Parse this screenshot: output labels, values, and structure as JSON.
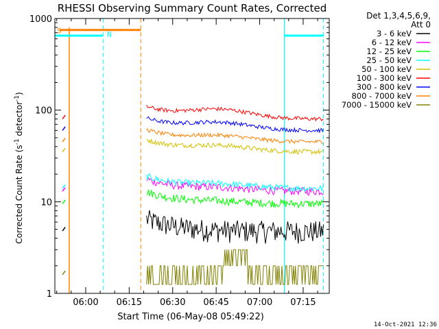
{
  "chart_data": {
    "type": "line",
    "title": "RHESSI Observing Summary Count Rates, Corrected",
    "xlabel": "Start Time (06-May-08 05:49:22)",
    "ylabel_main": "Corrected Count Rate (s",
    "ylabel_sup1": "-1",
    "ylabel_mid": " detector",
    "ylabel_sup2": "-1",
    "ylabel_end": ")",
    "yscale": "log",
    "ylim": [
      1,
      1000
    ],
    "xlim": [
      "05:49:22",
      "07:24:00"
    ],
    "x_ticks": [
      "06:00",
      "06:15",
      "06:30",
      "06:45",
      "07:00",
      "07:15"
    ],
    "y_ticks": [
      "1",
      "10",
      "100",
      "1000"
    ],
    "legend": {
      "header1": "Det 1,3,4,5,6,9,",
      "header2": "Att 0",
      "position": "right"
    },
    "series": [
      {
        "name": "3 - 6 keV",
        "color": "#000000",
        "base": 4.8,
        "noise": 0.14,
        "bump": 1.0,
        "data_start": "06:21",
        "data_end": "07:22"
      },
      {
        "name": "6 - 12 keV",
        "color": "#ff00ff",
        "base": 13.0,
        "noise": 0.05,
        "bump": 1.08,
        "data_start": "06:21",
        "data_end": "07:22"
      },
      {
        "name": "12 - 25 keV",
        "color": "#00ff00",
        "base": 9.5,
        "noise": 0.05,
        "bump": 1.05,
        "data_start": "06:21",
        "data_end": "07:22"
      },
      {
        "name": "25 - 50 keV",
        "color": "#00ffff",
        "base": 14.0,
        "noise": 0.04,
        "bump": 1.1,
        "data_start": "06:21",
        "data_end": "07:22"
      },
      {
        "name": "50 - 100 keV",
        "color": "#d4c000",
        "base": 35.0,
        "noise": 0.03,
        "bump": 1.15,
        "data_start": "06:21",
        "data_end": "07:22"
      },
      {
        "name": "100 - 300 keV",
        "color": "#ff0000",
        "base": 80.0,
        "noise": 0.025,
        "bump": 1.25,
        "data_start": "06:21",
        "data_end": "07:22"
      },
      {
        "name": "300 - 800 keV",
        "color": "#0000ff",
        "base": 60.0,
        "noise": 0.025,
        "bump": 1.2,
        "data_start": "06:21",
        "data_end": "07:22"
      },
      {
        "name": "800 - 7000 keV",
        "color": "#ff8000",
        "base": 45.0,
        "noise": 0.025,
        "bump": 1.15,
        "data_start": "06:21",
        "data_end": "07:22"
      },
      {
        "name": "7000 - 15000 keV",
        "color": "#808000",
        "base": 1.6,
        "noise": 0.2,
        "bump": 1.0,
        "data_start": "06:21",
        "data_end": "07:22"
      }
    ],
    "flags": [
      {
        "label": "S",
        "color": "#ff8000",
        "start": "05:51:00",
        "end": "06:19:00",
        "level": 750
      },
      {
        "label": "N",
        "color": "#00ffff",
        "start": "05:49:22",
        "end": "06:06:00",
        "level": 650
      },
      {
        "label": "",
        "color": "#00ffff",
        "start": "07:08:30",
        "end": "07:22:00",
        "level": 650
      }
    ],
    "orange_dashed_at": "06:19:00",
    "cyan_dashed_at": [
      "06:06:00",
      "07:22:00"
    ],
    "cyan_solid_at": "07:08:30",
    "footer_date": "14-Oct-2021 12:36"
  }
}
